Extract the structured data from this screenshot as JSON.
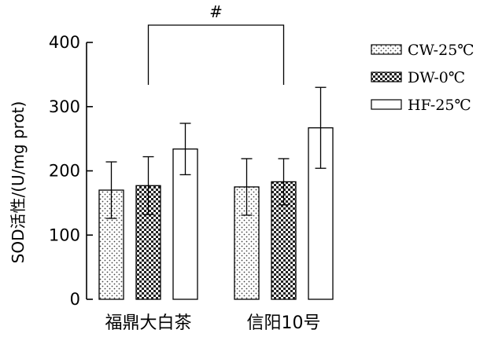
{
  "chart_data": {
    "type": "bar",
    "title": "",
    "xlabel": "",
    "ylabel": "SOD活性/(U/mg prot)",
    "ylim": [
      0,
      400
    ],
    "yticks": [
      0,
      100,
      200,
      300,
      400
    ],
    "categories": [
      "福鼎大白茶",
      "信阳10号"
    ],
    "series": [
      {
        "name": "CW-25℃",
        "values": [
          170,
          175
        ],
        "errors": [
          44,
          44
        ],
        "fill": "dots"
      },
      {
        "name": "DW-0℃",
        "values": [
          177,
          183
        ],
        "errors": [
          45,
          36
        ],
        "fill": "checker"
      },
      {
        "name": "HF-25℃",
        "values": [
          234,
          267
        ],
        "errors": [
          40,
          63
        ],
        "fill": "white"
      }
    ],
    "significance": [
      {
        "label": "#",
        "from": {
          "category": 0,
          "series": 1
        },
        "to": {
          "category": 1,
          "series": 1
        }
      }
    ],
    "legend_position": "top-right",
    "grid": false
  }
}
